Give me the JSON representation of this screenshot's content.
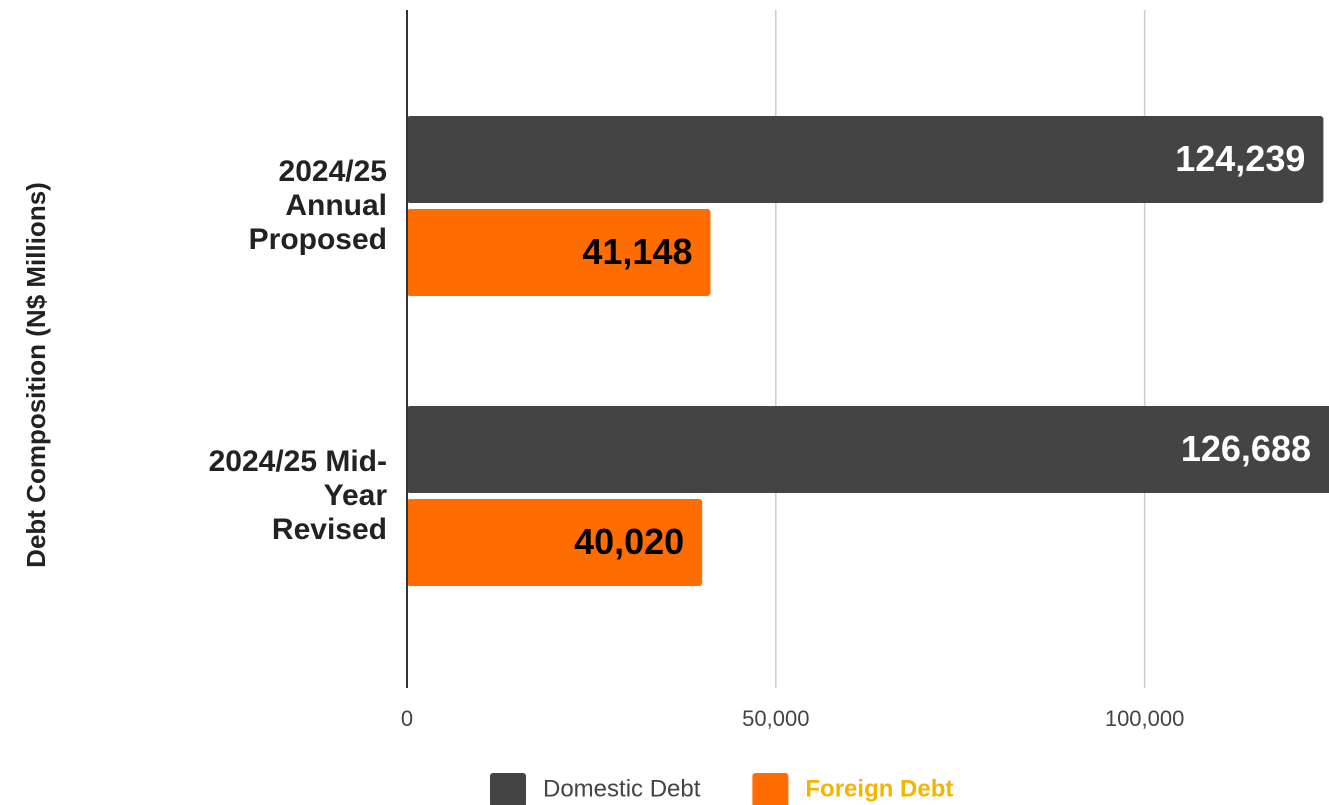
{
  "chart_data": {
    "type": "hbar",
    "y_axis_title": "Debt Composition (N$ Millions)",
    "categories": [
      "2024/25 Annual Proposed",
      "2024/25 Mid-Year Revised"
    ],
    "series": [
      {
        "name": "Domestic Debt",
        "color": "#444444",
        "label_color": "#ffffff",
        "legend_text_color": "#444444",
        "legend_bold": false,
        "values": [
          124239,
          126688
        ],
        "value_labels": [
          "124,239",
          "126,688"
        ]
      },
      {
        "name": "Foreign Debt",
        "color": "#ff6d00",
        "label_color": "#000000",
        "legend_text_color": "#f4b400",
        "legend_bold": true,
        "values": [
          41148,
          40020
        ],
        "value_labels": [
          "41,148",
          "40,020"
        ]
      }
    ],
    "xlim": [
      0,
      125000
    ],
    "xticks": [
      0,
      {
        "value": 50000,
        "label": "50,000"
      },
      {
        "value": 100000,
        "label": "100,000"
      }
    ],
    "grid": true,
    "legend": "bottom"
  }
}
